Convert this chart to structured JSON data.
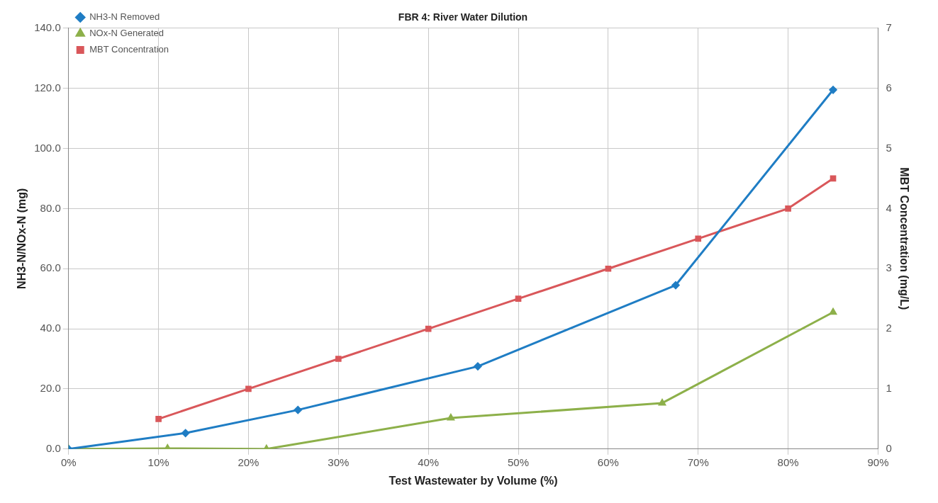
{
  "chart_data": {
    "type": "line",
    "title": "FBR 4: River Water Dilution",
    "xlabel": "Test Wastewater by Volume (%)",
    "ylabel": "NH3-N/NOx-N (mg)",
    "y2label": "MBT Concentration (mg/L)",
    "xlim": [
      0,
      90
    ],
    "xticks": [
      {
        "value": 0,
        "label": "0%"
      },
      {
        "value": 10,
        "label": "10%"
      },
      {
        "value": 20,
        "label": "20%"
      },
      {
        "value": 30,
        "label": "30%"
      },
      {
        "value": 40,
        "label": "40%"
      },
      {
        "value": 50,
        "label": "50%"
      },
      {
        "value": 60,
        "label": "60%"
      },
      {
        "value": 70,
        "label": "70%"
      },
      {
        "value": 80,
        "label": "80%"
      },
      {
        "value": 90,
        "label": "90%"
      }
    ],
    "ylim": [
      0,
      140
    ],
    "yticks": [
      {
        "value": 0,
        "label": "0.0"
      },
      {
        "value": 20,
        "label": "20.0"
      },
      {
        "value": 40,
        "label": "40.0"
      },
      {
        "value": 60,
        "label": "60.0"
      },
      {
        "value": 80,
        "label": "80.0"
      },
      {
        "value": 100,
        "label": "100.0"
      },
      {
        "value": 120,
        "label": "120.0"
      },
      {
        "value": 140,
        "label": "140.0"
      }
    ],
    "y2lim": [
      0,
      7
    ],
    "y2ticks": [
      0,
      1,
      2,
      3,
      4,
      5,
      6,
      7
    ],
    "grid": true,
    "legend": "top left",
    "series": [
      {
        "name": "NH3-N Removed",
        "color": "#1f7dc4",
        "marker": "diamond",
        "x": [
          0,
          13,
          25.5,
          45.5,
          67.5,
          85
        ],
        "values": [
          0,
          5.3,
          13,
          27.5,
          54.5,
          119.5
        ]
      },
      {
        "name": "NOx-N Generated",
        "color": "#8db04a",
        "marker": "triangle",
        "x": [
          0,
          11,
          22,
          42.5,
          66,
          85
        ],
        "values": [
          0,
          0.2,
          0,
          10.3,
          15.3,
          45.5
        ]
      },
      {
        "name": "MBT Concentration",
        "color": "#d9575a",
        "marker": "square",
        "axis": "y2",
        "x": [
          10,
          20,
          30,
          40,
          50,
          60,
          70,
          80,
          85
        ],
        "values": [
          0.5,
          1,
          1.5,
          2,
          2.5,
          3,
          3.5,
          4,
          4.5
        ]
      }
    ]
  }
}
